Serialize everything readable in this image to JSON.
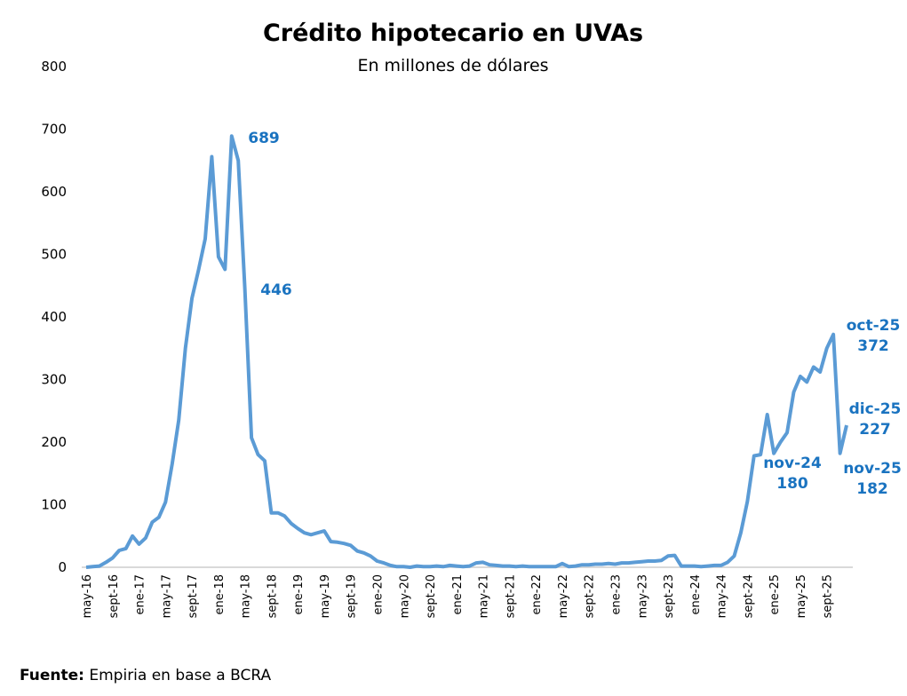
{
  "chart_data": {
    "type": "line",
    "title": "Crédito hipotecario en UVAs",
    "subtitle": "En millones de dólares",
    "xlabel": "",
    "ylabel": "",
    "ylim": [
      0,
      800
    ],
    "yticks": [
      "0",
      "100",
      "200",
      "300",
      "400",
      "500",
      "600",
      "700",
      "800"
    ],
    "grid": false,
    "legend": "none",
    "color": "#5b9bd5",
    "annotation_color": "#1a73c0",
    "xtick_labels": [
      "may-16",
      "sept-16",
      "ene-17",
      "may-17",
      "sept-17",
      "ene-18",
      "may-18",
      "sept-18",
      "ene-19",
      "may-19",
      "sept-19",
      "ene-20",
      "may-20",
      "sept-20",
      "ene-21",
      "may-21",
      "sept-21",
      "ene-22",
      "may-22",
      "sept-22",
      "ene-23",
      "may-23",
      "sept-23",
      "ene-24",
      "may-24",
      "sept-24",
      "ene-25",
      "may-25",
      "sept-25"
    ],
    "x_start": "may-16",
    "x_end": "dic-25",
    "frequency": "monthly",
    "values": [
      0,
      1,
      2,
      8,
      15,
      27,
      30,
      50,
      37,
      47,
      72,
      80,
      104,
      165,
      235,
      350,
      430,
      475,
      525,
      656,
      496,
      476,
      689,
      650,
      446,
      207,
      180,
      170,
      87,
      87,
      82,
      70,
      62,
      55,
      52,
      55,
      58,
      41,
      40,
      38,
      35,
      26,
      23,
      18,
      10,
      7,
      3,
      1,
      1,
      0,
      2,
      1,
      1,
      2,
      1,
      3,
      2,
      1,
      2,
      7,
      8,
      4,
      3,
      2,
      2,
      1,
      2,
      1,
      1,
      1,
      1,
      1,
      6,
      1,
      2,
      4,
      4,
      5,
      5,
      6,
      5,
      7,
      7,
      8,
      9,
      10,
      10,
      11,
      18,
      19,
      2,
      2,
      2,
      1,
      2,
      3,
      3,
      8,
      18,
      55,
      105,
      178,
      180,
      244,
      182,
      200,
      215,
      280,
      305,
      296,
      320,
      312,
      350,
      372,
      182,
      227
    ],
    "annotations": [
      {
        "index": 22,
        "text": "689"
      },
      {
        "index": 24,
        "text": "446"
      },
      {
        "index": 102,
        "label": "nov-24",
        "text": "180"
      },
      {
        "index": 113,
        "label": "oct-25",
        "text": "372"
      },
      {
        "index": 114,
        "label": "nov-25",
        "text": "182"
      },
      {
        "index": 115,
        "label": "dic-25",
        "text": "227"
      }
    ]
  },
  "source": {
    "label": "Fuente:",
    "text": " Empiria en base a BCRA"
  }
}
